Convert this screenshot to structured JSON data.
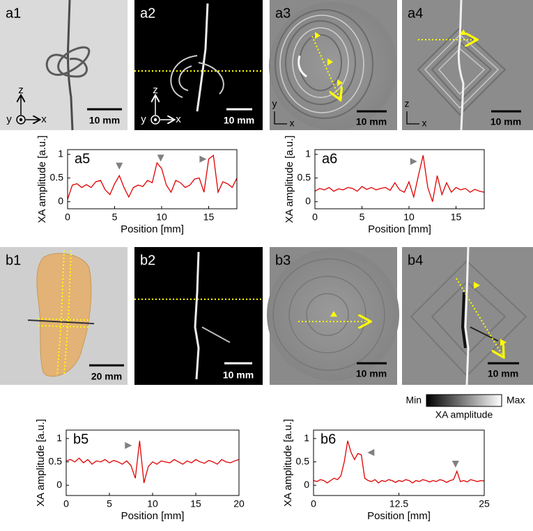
{
  "panels": [
    {
      "label": "a1",
      "scale_bar": "10 mm",
      "axes": [
        "z",
        "y",
        "x"
      ]
    },
    {
      "label": "a2",
      "scale_bar": "10 mm",
      "axes": [
        "z",
        "y",
        "x"
      ]
    },
    {
      "label": "a3",
      "scale_bar": "10 mm",
      "axes": [
        "y",
        "x"
      ]
    },
    {
      "label": "a4",
      "scale_bar": "10 mm",
      "axes": [
        "z",
        "x"
      ]
    },
    {
      "label": "b1",
      "scale_bar": "20 mm"
    },
    {
      "label": "b2",
      "scale_bar": "10 mm"
    },
    {
      "label": "b3",
      "scale_bar": "10 mm"
    },
    {
      "label": "b4",
      "scale_bar": "10 mm"
    }
  ],
  "colorbar": {
    "min": "Min",
    "max": "Max",
    "label": "XA amplitude"
  },
  "chart_data": [
    {
      "type": "line",
      "panel": "a5",
      "x_label": "Position [mm]",
      "y_label": "XA amplitude [a.u.]",
      "color": "#e00000",
      "xlim": [
        0,
        18
      ],
      "xticks": [
        0,
        5,
        10,
        15
      ],
      "ylim": [
        -0.15,
        1.1
      ],
      "yticks": [
        0,
        0.5,
        1
      ],
      "x": [
        0,
        0.5,
        1,
        1.5,
        2,
        2.5,
        3,
        3.5,
        4,
        4.5,
        5,
        5.5,
        6,
        6.5,
        7,
        7.5,
        8,
        8.5,
        9,
        9.5,
        10,
        10.5,
        11,
        11.5,
        12,
        12.5,
        13,
        13.5,
        14,
        14.5,
        15,
        15.5,
        16,
        16.5,
        17,
        17.5,
        18
      ],
      "values": [
        0.05,
        0.35,
        0.38,
        0.3,
        0.36,
        0.3,
        0.42,
        0.45,
        0.25,
        0.15,
        0.38,
        0.55,
        0.3,
        0.1,
        0.3,
        0.35,
        0.32,
        0.45,
        0.4,
        0.82,
        0.7,
        0.35,
        0.2,
        0.45,
        0.4,
        0.3,
        0.35,
        0.48,
        0.5,
        0.2,
        0.9,
        0.98,
        0.2,
        0.42,
        0.38,
        0.3,
        0.5
      ],
      "markers": [
        {
          "x": 5.5,
          "y": 0.75,
          "direction": "down"
        },
        {
          "x": 9.9,
          "y": 0.92,
          "direction": "down"
        },
        {
          "x": 14.4,
          "y": 0.9,
          "direction": "right"
        }
      ]
    },
    {
      "type": "line",
      "panel": "a6",
      "x_label": "Position [mm]",
      "y_label": "XA amplitude [a.u.]",
      "color": "#e00000",
      "xlim": [
        0,
        18
      ],
      "xticks": [
        0,
        5,
        10,
        15
      ],
      "ylim": [
        -0.15,
        1.1
      ],
      "yticks": [
        0,
        0.5,
        1
      ],
      "x": [
        0,
        0.5,
        1,
        1.5,
        2,
        2.5,
        3,
        3.5,
        4,
        4.5,
        5,
        5.5,
        6,
        6.5,
        7,
        7.5,
        8,
        8.5,
        9,
        9.5,
        10,
        10.5,
        11,
        11.5,
        12,
        12.5,
        13,
        13.5,
        14,
        14.5,
        15,
        15.5,
        16,
        16.5,
        17,
        17.5,
        18
      ],
      "values": [
        0.22,
        0.28,
        0.25,
        0.3,
        0.22,
        0.27,
        0.25,
        0.3,
        0.28,
        0.22,
        0.32,
        0.26,
        0.3,
        0.25,
        0.28,
        0.3,
        0.24,
        0.4,
        0.25,
        0.2,
        0.42,
        0.1,
        0.55,
        0.98,
        0.3,
        0.0,
        0.55,
        0.15,
        0.4,
        0.2,
        0.3,
        0.25,
        0.28,
        0.2,
        0.26,
        0.22,
        0.2
      ],
      "markers": [
        {
          "x": 10.5,
          "y": 0.85,
          "direction": "right"
        }
      ]
    },
    {
      "type": "line",
      "panel": "b5",
      "x_label": "Position [mm]",
      "y_label": "XA amplitude [a.u.]",
      "color": "#e00000",
      "xlim": [
        0,
        20
      ],
      "xticks": [
        0,
        5,
        10,
        15,
        20
      ],
      "ylim": [
        -0.22,
        1.18
      ],
      "yticks": [
        0,
        0.5,
        1
      ],
      "x": [
        0,
        0.5,
        1,
        1.5,
        2,
        2.5,
        3,
        3.5,
        4,
        4.5,
        5,
        5.5,
        6,
        6.5,
        7,
        7.5,
        8,
        8.5,
        9,
        9.5,
        10,
        10.5,
        11,
        11.5,
        12,
        12.5,
        13,
        13.5,
        14,
        14.5,
        15,
        15.5,
        16,
        16.5,
        17,
        17.5,
        18,
        18.5,
        19,
        19.5,
        20
      ],
      "values": [
        0.52,
        0.55,
        0.5,
        0.58,
        0.48,
        0.55,
        0.45,
        0.52,
        0.5,
        0.55,
        0.48,
        0.53,
        0.5,
        0.45,
        0.52,
        0.42,
        0.15,
        0.95,
        0.05,
        0.4,
        0.5,
        0.45,
        0.52,
        0.5,
        0.48,
        0.55,
        0.5,
        0.45,
        0.52,
        0.48,
        0.55,
        0.5,
        0.47,
        0.53,
        0.5,
        0.45,
        0.55,
        0.5,
        0.48,
        0.52,
        0.55
      ],
      "markers": [
        {
          "x": 7.2,
          "y": 0.85,
          "direction": "right"
        }
      ]
    },
    {
      "type": "line",
      "panel": "b6",
      "x_label": "Position [mm]",
      "y_label": "XA amplitude [a.u.]",
      "color": "#e00000",
      "xlim": [
        0,
        25
      ],
      "xticks": [
        0,
        12.5,
        25
      ],
      "ylim": [
        -0.22,
        1.18
      ],
      "yticks": [
        0,
        0.5,
        1
      ],
      "x": [
        0,
        0.5,
        1,
        1.5,
        2,
        2.5,
        3,
        3.5,
        4,
        4.5,
        5,
        5.5,
        6,
        6.5,
        7,
        7.5,
        8,
        8.5,
        9,
        9.5,
        10,
        10.5,
        11,
        11.5,
        12,
        12.5,
        13,
        13.5,
        14,
        14.5,
        15,
        15.5,
        16,
        16.5,
        17,
        17.5,
        18,
        18.5,
        19,
        19.5,
        20,
        20.5,
        21,
        21.5,
        22,
        22.5,
        23,
        23.5,
        24,
        24.5,
        25
      ],
      "values": [
        0.1,
        0.08,
        0.12,
        0.1,
        0.05,
        0.1,
        0.15,
        0.12,
        0.2,
        0.5,
        0.95,
        0.7,
        0.55,
        0.68,
        0.65,
        0.15,
        0.1,
        0.08,
        0.12,
        0.05,
        0.1,
        0.08,
        0.12,
        0.1,
        0.06,
        0.1,
        0.08,
        0.12,
        0.1,
        0.05,
        0.1,
        0.08,
        0.12,
        0.1,
        0.07,
        0.1,
        0.08,
        0.12,
        0.1,
        0.06,
        0.1,
        0.12,
        0.3,
        0.08,
        0.1,
        0.07,
        0.12,
        0.1,
        0.08,
        0.1,
        0.09
      ],
      "markers": [
        {
          "x": 8.4,
          "y": 0.7,
          "direction": "left"
        },
        {
          "x": 20.8,
          "y": 0.45,
          "direction": "down"
        }
      ]
    }
  ]
}
